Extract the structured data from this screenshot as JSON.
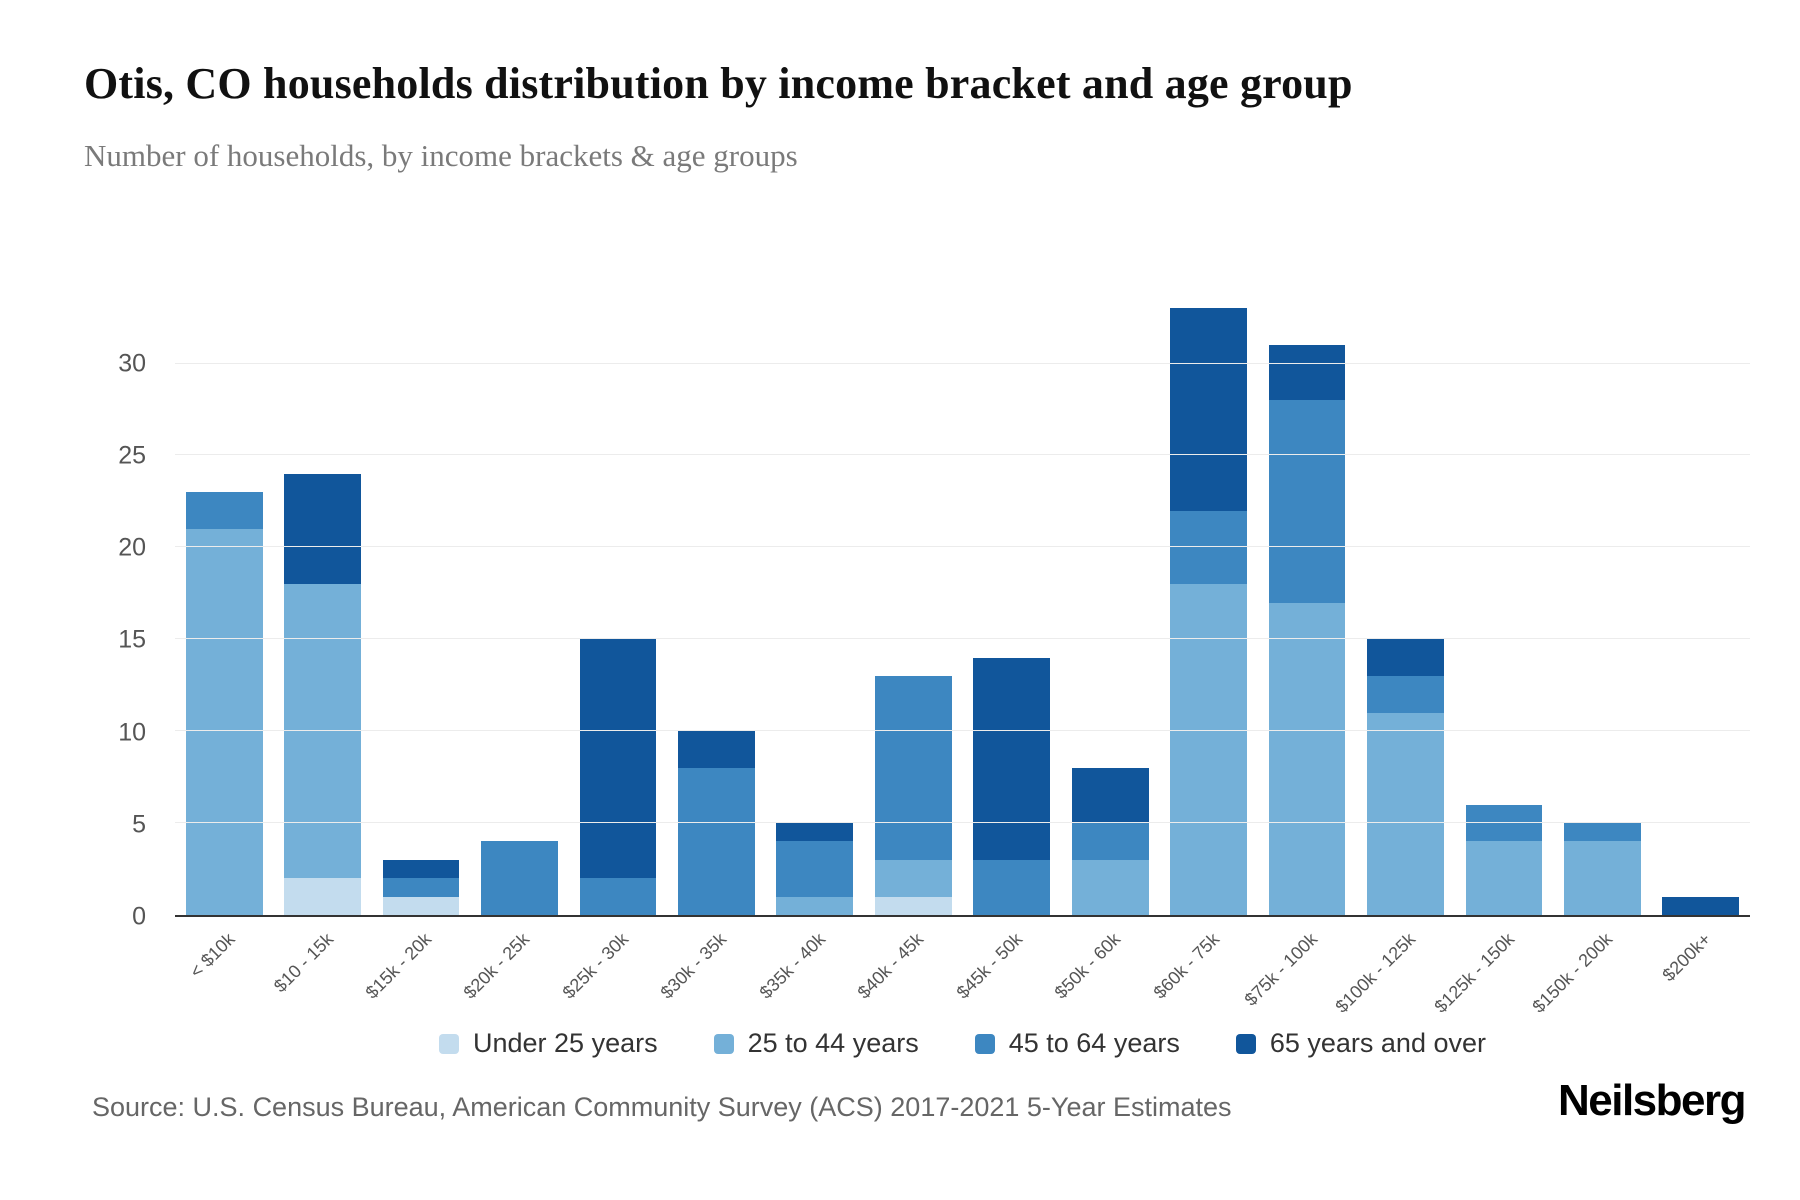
{
  "header": {
    "title": "Otis, CO households distribution by income bracket and age group",
    "subtitle": "Number of households, by income brackets & age groups"
  },
  "footer": {
    "source": "Source: U.S. Census Bureau, American Community Survey (ACS) 2017-2021 5-Year Estimates",
    "brand": "Neilsberg"
  },
  "chart_data": {
    "type": "bar",
    "stacked": true,
    "title": "Otis, CO households distribution by income bracket and age group",
    "xlabel": "",
    "ylabel": "Number of households",
    "categories": [
      "< $10k",
      "$10 - 15k",
      "$15k - 20k",
      "$20k - 25k",
      "$25k - 30k",
      "$30k - 35k",
      "$35k - 40k",
      "$40k - 45k",
      "$45k - 50k",
      "$50k - 60k",
      "$60k - 75k",
      "$75k - 100k",
      "$100k - 125k",
      "$125k - 150k",
      "$150k - 200k",
      "$200k+"
    ],
    "series": [
      {
        "name": "Under 25 years",
        "color": "#c3dcee",
        "values": [
          0,
          2,
          1,
          0,
          0,
          0,
          0,
          1,
          0,
          0,
          0,
          0,
          0,
          0,
          0,
          0
        ]
      },
      {
        "name": "25 to 44 years",
        "color": "#74b0d8",
        "values": [
          21,
          16,
          0,
          0,
          0,
          0,
          1,
          2,
          0,
          3,
          18,
          17,
          11,
          4,
          4,
          0
        ]
      },
      {
        "name": "45 to 64 years",
        "color": "#3d87c1",
        "values": [
          2,
          0,
          1,
          4,
          2,
          8,
          3,
          10,
          3,
          2,
          4,
          11,
          2,
          2,
          1,
          0
        ]
      },
      {
        "name": "65 years and over",
        "color": "#11569b",
        "values": [
          0,
          6,
          1,
          0,
          13,
          2,
          1,
          0,
          11,
          3,
          11,
          3,
          2,
          0,
          0,
          1
        ]
      }
    ],
    "totals": [
      23,
      24,
      3,
      4,
      15,
      10,
      5,
      13,
      14,
      8,
      33,
      31,
      15,
      6,
      5,
      1
    ],
    "ylim": [
      0,
      34
    ],
    "yticks": [
      0,
      5,
      10,
      15,
      20,
      25,
      30
    ],
    "grid": true,
    "legend_position": "bottom"
  }
}
